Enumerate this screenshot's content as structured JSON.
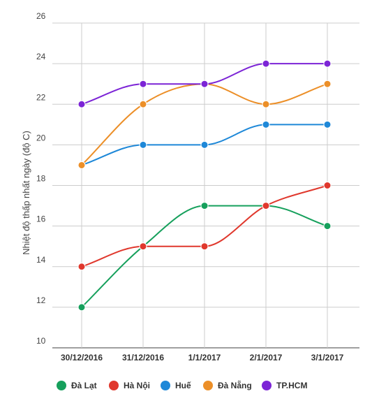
{
  "chart_data": {
    "type": "line",
    "categories": [
      "30/12/2016",
      "31/12/2016",
      "1/1/2017",
      "2/1/2017",
      "3/1/2017"
    ],
    "ylabel": "Nhiệt độ thấp nhất ngày (độ C)",
    "xlabel": "",
    "ylim": [
      10,
      26
    ],
    "yticks": [
      10,
      12,
      14,
      16,
      18,
      20,
      22,
      24,
      26
    ],
    "grid": true,
    "legend_position": "bottom",
    "series": [
      {
        "name": "Đà Lạt",
        "color": "#16a05c",
        "values": [
          12,
          15,
          17,
          17,
          16
        ]
      },
      {
        "name": "Hà Nội",
        "color": "#e0382d",
        "values": [
          14,
          15,
          15,
          17,
          18
        ]
      },
      {
        "name": "Huế",
        "color": "#1e88d8",
        "values": [
          19,
          20,
          20,
          21,
          21
        ]
      },
      {
        "name": "Đà Nẵng",
        "color": "#ec8f28",
        "values": [
          19,
          22,
          23,
          22,
          23
        ]
      },
      {
        "name": "TP.HCM",
        "color": "#7c24d6",
        "values": [
          22,
          23,
          23,
          24,
          24
        ]
      }
    ]
  }
}
